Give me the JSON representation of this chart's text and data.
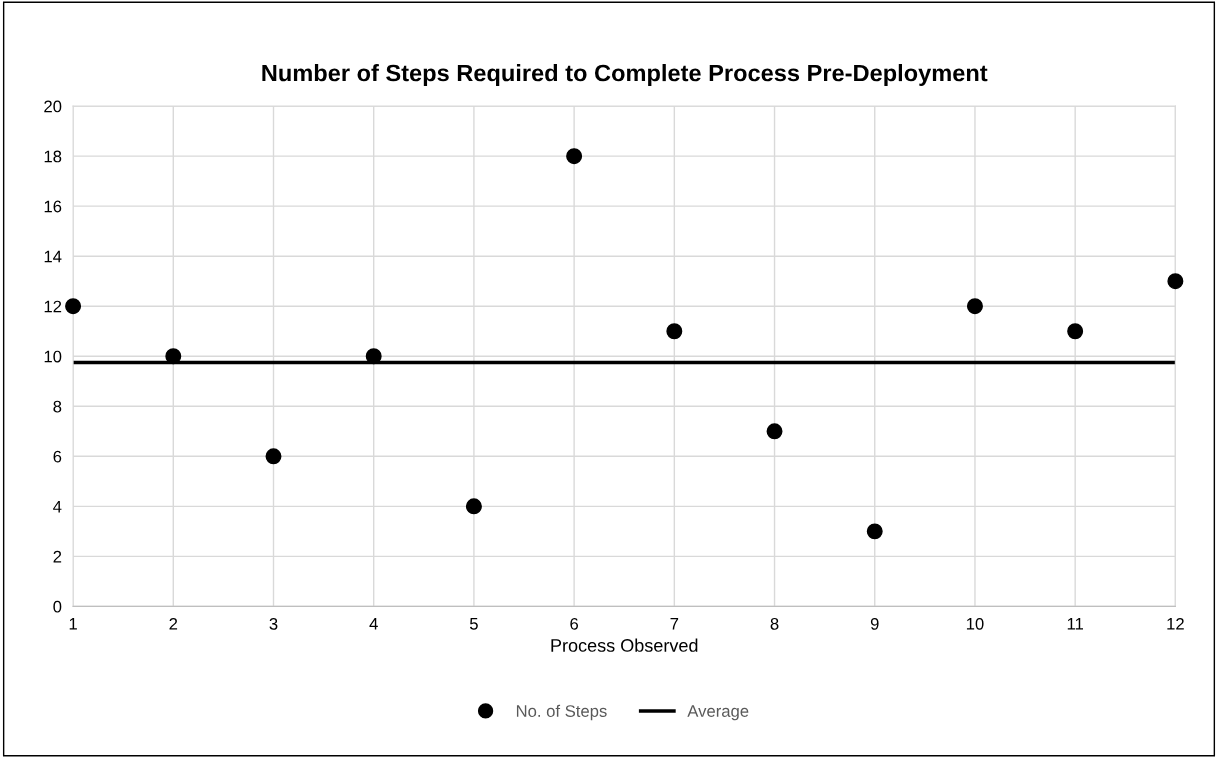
{
  "chart_data": {
    "type": "scatter",
    "title": "Number of Steps Required to Complete Process Pre-Deployment",
    "xlabel": "Process Observed",
    "x": [
      1,
      2,
      3,
      4,
      5,
      6,
      7,
      8,
      9,
      10,
      11,
      12
    ],
    "series": [
      {
        "name": "No. of Steps",
        "marker": "circle",
        "color": "#000000",
        "values": [
          12,
          10,
          6,
          10,
          4,
          18,
          11,
          7,
          3,
          12,
          11,
          13
        ]
      },
      {
        "name": "Average",
        "type": "line",
        "marker": "none",
        "color": "#000000",
        "x": [
          1,
          12
        ],
        "values": [
          9.75,
          9.75
        ]
      }
    ],
    "xlim": [
      1,
      12
    ],
    "xticks": [
      1,
      2,
      3,
      4,
      5,
      6,
      7,
      8,
      9,
      10,
      11,
      12
    ],
    "ylim": [
      0,
      20
    ],
    "yticks": [
      0,
      2,
      4,
      6,
      8,
      10,
      12,
      14,
      16,
      18,
      20
    ],
    "grid": true,
    "legend": "bottom"
  }
}
